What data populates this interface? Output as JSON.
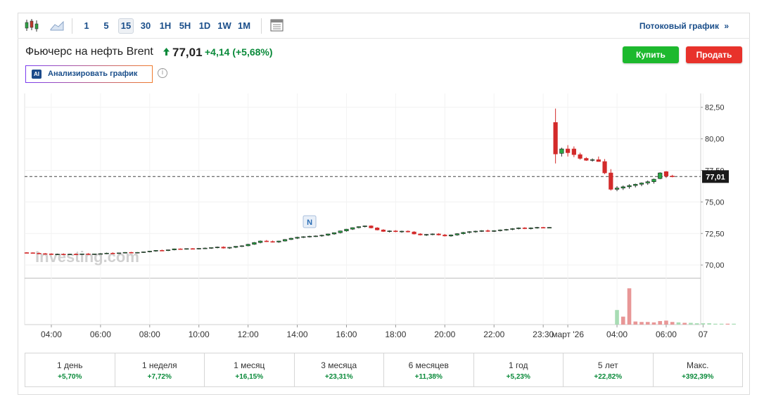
{
  "toolbar": {
    "icons": [
      "candlestick-icon",
      "area-chart-icon",
      "table-view-icon"
    ],
    "timeframes": [
      "1",
      "5",
      "15",
      "30",
      "1H",
      "5H",
      "1D",
      "1W",
      "1M"
    ],
    "active_timeframe": "15",
    "stream_label": "Потоковый график",
    "stream_icon": "double-chevron-right-icon"
  },
  "header": {
    "title": "Фьючерс на нефть Brent",
    "price": "77,01",
    "change": "+4,14",
    "change_pct": "(+5,68%)",
    "direction_icon": "up-arrow-icon",
    "buy_label": "Купить",
    "sell_label": "Продать",
    "ai_badge": "AI",
    "ai_label": "Анализировать график",
    "info_icon": "info-icon",
    "colors": {
      "up": "#0a8a3a",
      "buy": "#1db92e",
      "sell": "#e8322b",
      "link": "#1a4e8a"
    }
  },
  "chart_data": {
    "type": "candlestick",
    "watermark": "Investing.com",
    "last_price_label": "77,01",
    "last_price": 77.01,
    "event_marker": "N",
    "event_marker_candle": 46,
    "y_ticks": [
      "82,50",
      "80,00",
      "77,50",
      "75,00",
      "72,50",
      "70,00"
    ],
    "y_tick_values": [
      82.5,
      80.0,
      77.5,
      75.0,
      72.5,
      70.0
    ],
    "ylim": [
      68.95,
      83.6
    ],
    "x_ticks": [
      "04:00",
      "06:00",
      "08:00",
      "10:00",
      "12:00",
      "14:00",
      "16:00",
      "18:00",
      "20:00",
      "22:00",
      "23:30",
      "март '26",
      "04:00",
      "06:00",
      "07"
    ],
    "x_tick_candles": [
      4,
      12,
      20,
      28,
      36,
      44,
      52,
      60,
      68,
      76,
      84,
      88,
      96,
      104,
      110
    ],
    "candles": [
      [
        70.98,
        71.02,
        70.94,
        70.97
      ],
      [
        70.97,
        71.0,
        70.9,
        70.93
      ],
      [
        70.93,
        70.99,
        70.88,
        70.9
      ],
      [
        70.9,
        70.95,
        70.84,
        70.88
      ],
      [
        70.88,
        70.93,
        70.8,
        70.84
      ],
      [
        70.84,
        70.9,
        70.8,
        70.86
      ],
      [
        70.86,
        70.92,
        70.8,
        70.83
      ],
      [
        70.83,
        70.88,
        70.8,
        70.86
      ],
      [
        70.86,
        70.92,
        70.8,
        70.84
      ],
      [
        70.84,
        70.9,
        70.82,
        70.88
      ],
      [
        70.88,
        70.94,
        70.8,
        70.84
      ],
      [
        70.84,
        70.9,
        70.8,
        70.88
      ],
      [
        70.88,
        70.94,
        70.84,
        70.9
      ],
      [
        70.9,
        70.98,
        70.86,
        70.94
      ],
      [
        70.94,
        71.0,
        70.9,
        70.92
      ],
      [
        70.92,
        70.98,
        70.88,
        70.96
      ],
      [
        70.96,
        71.02,
        70.92,
        71.0
      ],
      [
        71.0,
        71.04,
        70.94,
        70.96
      ],
      [
        70.96,
        71.02,
        70.92,
        71.0
      ],
      [
        71.0,
        71.06,
        70.96,
        71.04
      ],
      [
        71.04,
        71.12,
        71.0,
        71.1
      ],
      [
        71.1,
        71.18,
        71.06,
        71.16
      ],
      [
        71.16,
        71.22,
        71.1,
        71.14
      ],
      [
        71.14,
        71.22,
        71.1,
        71.2
      ],
      [
        71.2,
        71.3,
        71.16,
        71.28
      ],
      [
        71.28,
        71.32,
        71.22,
        71.26
      ],
      [
        71.26,
        71.32,
        71.22,
        71.3
      ],
      [
        71.3,
        71.34,
        71.24,
        71.28
      ],
      [
        71.28,
        71.34,
        71.24,
        71.32
      ],
      [
        71.32,
        71.38,
        71.28,
        71.34
      ],
      [
        71.34,
        71.4,
        71.28,
        71.38
      ],
      [
        71.38,
        71.46,
        71.32,
        71.42
      ],
      [
        71.42,
        71.48,
        71.3,
        71.34
      ],
      [
        71.34,
        71.42,
        71.28,
        71.4
      ],
      [
        71.4,
        71.5,
        71.34,
        71.48
      ],
      [
        71.48,
        71.56,
        71.42,
        71.52
      ],
      [
        71.52,
        71.68,
        71.48,
        71.64
      ],
      [
        71.64,
        71.82,
        71.6,
        71.78
      ],
      [
        71.78,
        71.94,
        71.72,
        71.9
      ],
      [
        71.9,
        71.98,
        71.82,
        71.86
      ],
      [
        71.86,
        71.94,
        71.78,
        71.82
      ],
      [
        71.82,
        71.92,
        71.76,
        71.9
      ],
      [
        71.9,
        72.06,
        71.86,
        72.02
      ],
      [
        72.02,
        72.16,
        71.98,
        72.12
      ],
      [
        72.12,
        72.24,
        72.06,
        72.2
      ],
      [
        72.2,
        72.28,
        72.14,
        72.24
      ],
      [
        72.24,
        72.32,
        72.18,
        72.28
      ],
      [
        72.28,
        72.34,
        72.22,
        72.3
      ],
      [
        72.3,
        72.4,
        72.24,
        72.36
      ],
      [
        72.36,
        72.48,
        72.3,
        72.46
      ],
      [
        72.46,
        72.58,
        72.4,
        72.56
      ],
      [
        72.56,
        72.72,
        72.5,
        72.7
      ],
      [
        72.7,
        72.86,
        72.64,
        72.84
      ],
      [
        72.84,
        72.98,
        72.78,
        72.96
      ],
      [
        72.96,
        73.06,
        72.9,
        73.04
      ],
      [
        73.04,
        73.12,
        72.98,
        73.1
      ],
      [
        73.1,
        73.14,
        72.9,
        72.94
      ],
      [
        72.94,
        73.0,
        72.74,
        72.78
      ],
      [
        72.78,
        72.84,
        72.62,
        72.66
      ],
      [
        72.66,
        72.74,
        72.58,
        72.7
      ],
      [
        72.7,
        72.76,
        72.6,
        72.64
      ],
      [
        72.64,
        72.72,
        72.56,
        72.68
      ],
      [
        72.68,
        72.74,
        72.58,
        72.62
      ],
      [
        72.62,
        72.68,
        72.42,
        72.46
      ],
      [
        72.46,
        72.52,
        72.34,
        72.38
      ],
      [
        72.38,
        72.46,
        72.3,
        72.42
      ],
      [
        72.42,
        72.5,
        72.36,
        72.46
      ],
      [
        72.46,
        72.52,
        72.34,
        72.38
      ],
      [
        72.38,
        72.46,
        72.26,
        72.3
      ],
      [
        72.3,
        72.42,
        72.24,
        72.38
      ],
      [
        72.38,
        72.52,
        72.32,
        72.48
      ],
      [
        72.48,
        72.62,
        72.42,
        72.58
      ],
      [
        72.58,
        72.68,
        72.5,
        72.64
      ],
      [
        72.64,
        72.72,
        72.56,
        72.68
      ],
      [
        72.68,
        72.76,
        72.62,
        72.72
      ],
      [
        72.72,
        72.8,
        72.62,
        72.68
      ],
      [
        72.68,
        72.76,
        72.62,
        72.72
      ],
      [
        72.72,
        72.82,
        72.66,
        72.78
      ],
      [
        72.78,
        72.86,
        72.72,
        72.82
      ],
      [
        72.82,
        72.92,
        72.76,
        72.88
      ],
      [
        72.88,
        72.98,
        72.82,
        72.94
      ],
      [
        72.94,
        73.0,
        72.84,
        72.88
      ],
      [
        72.88,
        72.98,
        72.82,
        72.94
      ],
      [
        72.94,
        73.02,
        72.88,
        72.98
      ],
      [
        72.98,
        73.02,
        72.92,
        72.96
      ],
      [
        72.96,
        73.0,
        72.92,
        72.98
      ],
      [
        81.3,
        82.4,
        78.05,
        78.8
      ],
      [
        78.85,
        79.3,
        78.6,
        79.2
      ],
      [
        79.2,
        79.5,
        78.6,
        78.9
      ],
      [
        79.2,
        79.4,
        78.55,
        78.75
      ],
      [
        78.75,
        78.9,
        78.35,
        78.45
      ],
      [
        78.45,
        78.55,
        78.25,
        78.3
      ],
      [
        78.3,
        78.45,
        78.2,
        78.35
      ],
      [
        78.35,
        78.6,
        78.2,
        78.2
      ],
      [
        78.2,
        78.4,
        77.2,
        77.3
      ],
      [
        77.3,
        77.6,
        75.9,
        76.0
      ],
      [
        76.0,
        76.25,
        75.85,
        76.1
      ],
      [
        76.1,
        76.3,
        75.95,
        76.2
      ],
      [
        76.2,
        76.4,
        76.05,
        76.3
      ],
      [
        76.3,
        76.45,
        76.15,
        76.4
      ],
      [
        76.4,
        76.55,
        76.25,
        76.5
      ],
      [
        76.5,
        76.7,
        76.35,
        76.6
      ],
      [
        76.6,
        76.85,
        76.45,
        76.8
      ],
      [
        76.85,
        77.35,
        76.8,
        77.3
      ],
      [
        77.4,
        77.45,
        76.9,
        77.05
      ],
      [
        77.05,
        77.15,
        76.95,
        77.01
      ]
    ],
    "volume": [
      [
        96,
        0.33,
        "up"
      ],
      [
        97,
        0.18,
        "down"
      ],
      [
        98,
        0.82,
        "down"
      ],
      [
        99,
        0.07,
        "down"
      ],
      [
        100,
        0.06,
        "down"
      ],
      [
        101,
        0.06,
        "down"
      ],
      [
        102,
        0.05,
        "down"
      ],
      [
        103,
        0.08,
        "down"
      ],
      [
        104,
        0.09,
        "down"
      ],
      [
        105,
        0.06,
        "down"
      ],
      [
        106,
        0.05,
        "up"
      ],
      [
        107,
        0.04,
        "down"
      ],
      [
        108,
        0.04,
        "up"
      ],
      [
        109,
        0.03,
        "up"
      ],
      [
        110,
        0.03,
        "up"
      ],
      [
        111,
        0.03,
        "up"
      ],
      [
        112,
        0.02,
        "up"
      ],
      [
        113,
        0.02,
        "up"
      ],
      [
        114,
        0.02,
        "down"
      ],
      [
        115,
        0.02,
        "up"
      ]
    ],
    "colors": {
      "up": "#29a745",
      "down": "#d32a2a",
      "up_volume": "#a8dcb4",
      "down_volume": "#e89797"
    }
  },
  "periods": [
    {
      "label": "1 день",
      "value": "+5,70%"
    },
    {
      "label": "1 неделя",
      "value": "+7,72%"
    },
    {
      "label": "1 месяц",
      "value": "+16,15%"
    },
    {
      "label": "3 месяца",
      "value": "+23,31%"
    },
    {
      "label": "6 месяцев",
      "value": "+11,38%"
    },
    {
      "label": "1 год",
      "value": "+5,23%"
    },
    {
      "label": "5 лет",
      "value": "+22,82%"
    },
    {
      "label": "Макс.",
      "value": "+392,39%"
    }
  ]
}
